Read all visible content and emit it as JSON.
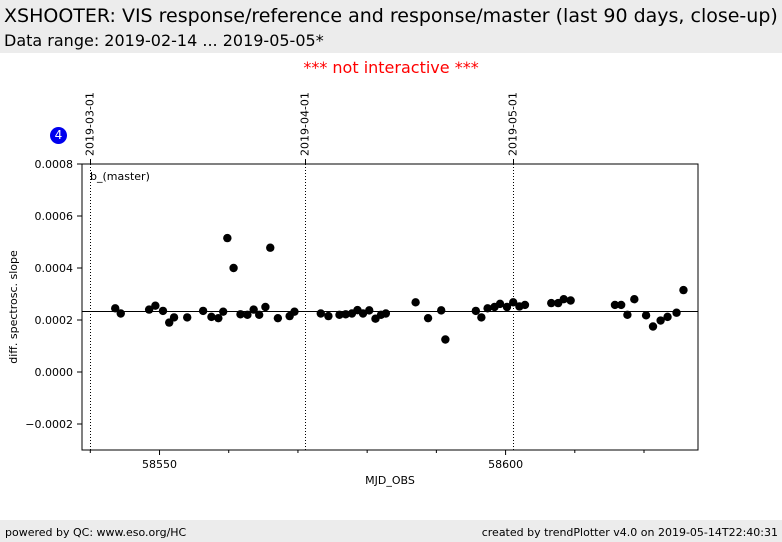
{
  "header": {
    "title": "XSHOOTER: VIS response/reference and response/master (last 90 days, close-up)",
    "subtitle": "Data range: 2019-02-14 ... 2019-05-05*"
  },
  "notice": "*** not interactive ***",
  "panel_badge": "4",
  "footer": {
    "left": "powered by QC: www.eso.org/HC",
    "right": "created by trendPlotter v4.0 on 2019-05-14T22:40:31"
  },
  "colors": {
    "points": "#000000",
    "notice": "#ff0000",
    "badge": "#0000ee",
    "band": "#ececec"
  },
  "chart_data": {
    "type": "scatter",
    "panel_label": "b_(master)",
    "xlabel": "MJD_OBS",
    "ylabel": "diff. spectrosc. slope",
    "xlim": [
      58538.8,
      58627.8
    ],
    "ylim": [
      -0.0003,
      0.0008
    ],
    "x_ticks": [
      58550,
      58600
    ],
    "x_tick_labels": [
      "58550",
      "58600"
    ],
    "x_minor_ticks": [
      58540,
      58560,
      58570,
      58580,
      58590,
      58610,
      58620
    ],
    "y_ticks": [
      -0.0002,
      0.0,
      0.0002,
      0.0004,
      0.0006,
      0.0008
    ],
    "y_tick_labels": [
      "−0.0002",
      "0.0000",
      "0.0002",
      "0.0004",
      "0.0006",
      "0.0008"
    ],
    "reference_line": 0.000235,
    "date_markers": [
      {
        "x": 58540.0,
        "label": "2019-03-01"
      },
      {
        "x": 58571.0,
        "label": "2019-04-01"
      },
      {
        "x": 58601.0,
        "label": "2019-05-01"
      }
    ],
    "points": [
      [
        58543.6,
        0.000245
      ],
      [
        58544.4,
        0.000225
      ],
      [
        58548.5,
        0.00024
      ],
      [
        58549.4,
        0.000255
      ],
      [
        58550.5,
        0.000235
      ],
      [
        58551.4,
        0.00019
      ],
      [
        58552.1,
        0.00021
      ],
      [
        58554.0,
        0.00021
      ],
      [
        58556.3,
        0.000235
      ],
      [
        58557.5,
        0.000212
      ],
      [
        58558.5,
        0.000207
      ],
      [
        58559.2,
        0.000232
      ],
      [
        58559.8,
        0.000515
      ],
      [
        58560.7,
        0.0004
      ],
      [
        58561.7,
        0.000222
      ],
      [
        58562.7,
        0.00022
      ],
      [
        58563.6,
        0.00024
      ],
      [
        58564.4,
        0.00022
      ],
      [
        58565.3,
        0.00025
      ],
      [
        58566.0,
        0.000478
      ],
      [
        58567.1,
        0.000207
      ],
      [
        58568.8,
        0.000215
      ],
      [
        58569.5,
        0.000232
      ],
      [
        58573.3,
        0.000225
      ],
      [
        58574.4,
        0.000215
      ],
      [
        58576.0,
        0.00022
      ],
      [
        58576.9,
        0.000222
      ],
      [
        58577.8,
        0.000225
      ],
      [
        58578.6,
        0.000238
      ],
      [
        58579.4,
        0.000225
      ],
      [
        58580.3,
        0.000237
      ],
      [
        58581.2,
        0.000205
      ],
      [
        58582.0,
        0.00022
      ],
      [
        58582.7,
        0.000225
      ],
      [
        58587.0,
        0.000268
      ],
      [
        58588.8,
        0.000207
      ],
      [
        58590.7,
        0.000237
      ],
      [
        58591.3,
        0.000125
      ],
      [
        58595.7,
        0.000235
      ],
      [
        58596.5,
        0.00021
      ],
      [
        58597.4,
        0.000245
      ],
      [
        58598.4,
        0.00025
      ],
      [
        58599.2,
        0.000262
      ],
      [
        58600.2,
        0.00025
      ],
      [
        58601.1,
        0.000268
      ],
      [
        58602.0,
        0.000252
      ],
      [
        58602.8,
        0.000258
      ],
      [
        58606.6,
        0.000265
      ],
      [
        58607.6,
        0.000265
      ],
      [
        58608.4,
        0.00028
      ],
      [
        58609.4,
        0.000275
      ],
      [
        58615.8,
        0.000258
      ],
      [
        58616.7,
        0.000258
      ],
      [
        58617.6,
        0.00022
      ],
      [
        58618.6,
        0.00028
      ],
      [
        58620.3,
        0.000218
      ],
      [
        58621.3,
        0.000175
      ],
      [
        58622.4,
        0.000198
      ],
      [
        58623.4,
        0.000212
      ],
      [
        58624.7,
        0.000228
      ],
      [
        58625.7,
        0.000315
      ]
    ]
  }
}
